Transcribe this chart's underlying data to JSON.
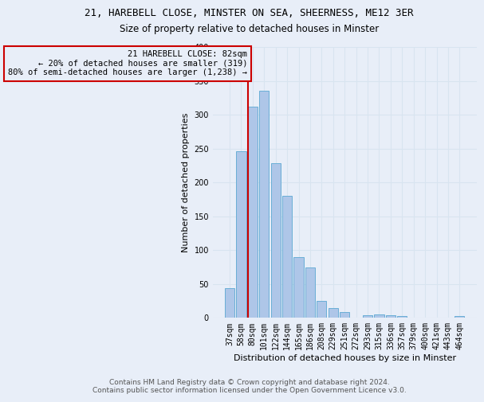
{
  "title_line1": "21, HAREBELL CLOSE, MINSTER ON SEA, SHEERNESS, ME12 3ER",
  "title_line2": "Size of property relative to detached houses in Minster",
  "xlabel": "Distribution of detached houses by size in Minster",
  "ylabel": "Number of detached properties",
  "categories": [
    "37sqm",
    "58sqm",
    "80sqm",
    "101sqm",
    "122sqm",
    "144sqm",
    "165sqm",
    "186sqm",
    "208sqm",
    "229sqm",
    "251sqm",
    "272sqm",
    "293sqm",
    "315sqm",
    "336sqm",
    "357sqm",
    "379sqm",
    "400sqm",
    "421sqm",
    "443sqm",
    "464sqm"
  ],
  "values": [
    44,
    246,
    312,
    335,
    228,
    180,
    90,
    75,
    25,
    15,
    9,
    0,
    4,
    5,
    4,
    3,
    0,
    0,
    0,
    0,
    3
  ],
  "bar_color": "#aec6e8",
  "bar_edge_color": "#6aaed6",
  "vline_index": 2,
  "vline_color": "#cc0000",
  "annotation_text_line1": "21 HAREBELL CLOSE: 82sqm",
  "annotation_text_line2": "← 20% of detached houses are smaller (319)",
  "annotation_text_line3": "80% of semi-detached houses are larger (1,238) →",
  "box_color": "#cc0000",
  "ylim": [
    0,
    400
  ],
  "yticks": [
    0,
    50,
    100,
    150,
    200,
    250,
    300,
    350,
    400
  ],
  "footer_line1": "Contains HM Land Registry data © Crown copyright and database right 2024.",
  "footer_line2": "Contains public sector information licensed under the Open Government Licence v3.0.",
  "background_color": "#e8eef8",
  "grid_color": "#d8e4f0",
  "title_fontsize": 9,
  "subtitle_fontsize": 8.5,
  "axis_label_fontsize": 8,
  "tick_fontsize": 7,
  "annotation_fontsize": 7.5,
  "footer_fontsize": 6.5
}
